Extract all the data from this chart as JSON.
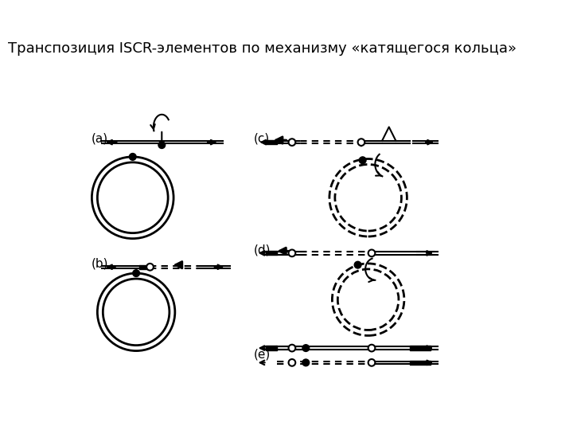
{
  "title": "Транспозиция ISCR-элементов по механизму «катящегося кольца»",
  "title_fontsize": 13,
  "bg_color": "#ffffff",
  "fig_width": 7.2,
  "fig_height": 5.4,
  "labels": [
    "(a)",
    "(b)",
    "(c)",
    "(d)",
    "(e)"
  ]
}
